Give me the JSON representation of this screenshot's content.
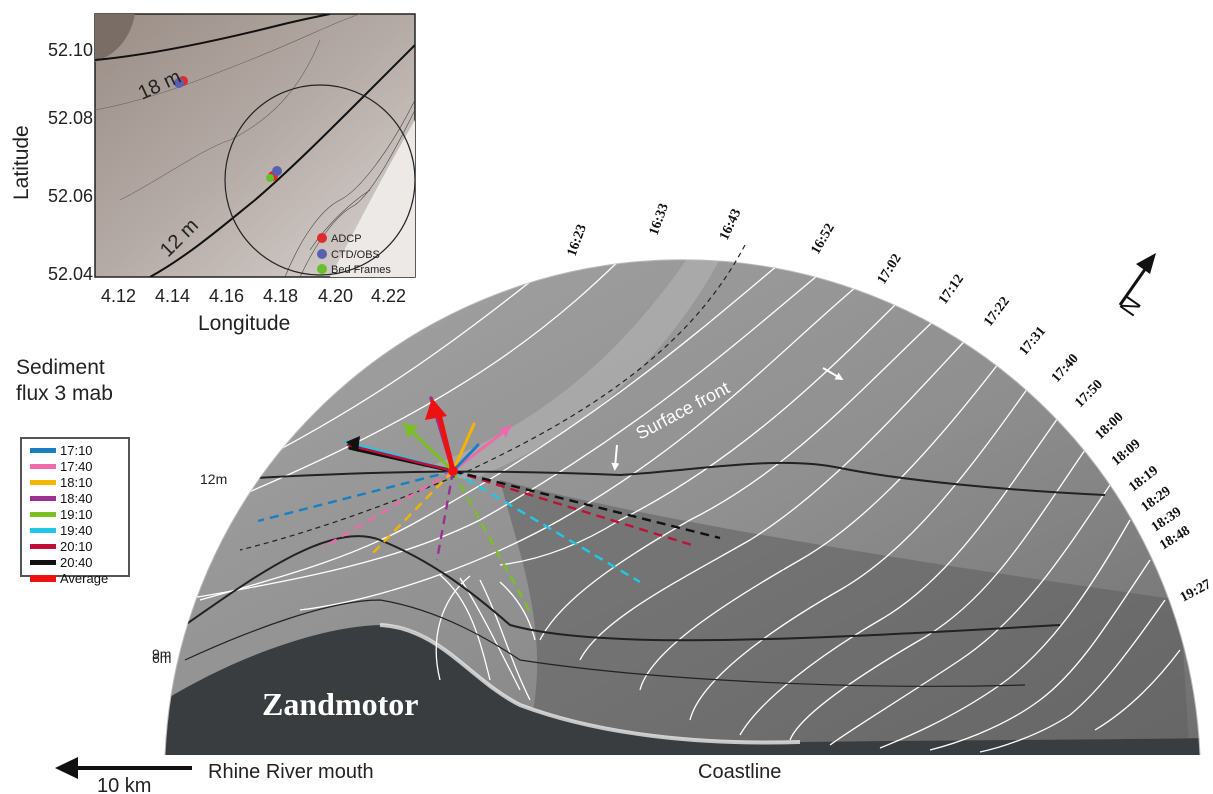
{
  "inset": {
    "ylabel": "Latitude",
    "xlabel": "Longitude",
    "yticks": [
      "52.10",
      "52.08",
      "52.06",
      "52.04"
    ],
    "xticks": [
      "4.12",
      "4.14",
      "4.16",
      "4.18",
      "4.20",
      "4.22"
    ],
    "contour_labels": [
      "18 m",
      "12 m"
    ],
    "legend": [
      {
        "label": "ADCP",
        "color": "#e02b2b"
      },
      {
        "label": "CTD/OBS",
        "color": "#5a60b0"
      },
      {
        "label": "Bed Frames",
        "color": "#66c02a"
      }
    ]
  },
  "legend": {
    "title_line1": "Sediment",
    "title_line2": "flux 3 mab",
    "items": [
      {
        "label": "17:10",
        "color": "#1a7fc1"
      },
      {
        "label": "17:40",
        "color": "#ef6aa8"
      },
      {
        "label": "18:10",
        "color": "#f4b400"
      },
      {
        "label": "18:40",
        "color": "#9c3090"
      },
      {
        "label": "19:10",
        "color": "#7ac020"
      },
      {
        "label": "19:40",
        "color": "#1ec8e6"
      },
      {
        "label": "20:10",
        "color": "#c0103a"
      },
      {
        "label": "20:40",
        "color": "#111111"
      },
      {
        "label": "Average",
        "color": "#ee1111"
      }
    ]
  },
  "time_labels": [
    "16:23",
    "16:33",
    "16:43",
    "16:52",
    "17:02",
    "17:12",
    "17:22",
    "17:31",
    "17:40",
    "17:50",
    "18:00",
    "18:09",
    "18:19",
    "18:29",
    "18:39",
    "18:48",
    "19:27"
  ],
  "depth_labels": [
    "12m",
    "9m",
    "6m"
  ],
  "annotations": {
    "surface_front": "Surface front",
    "zandmotor": "Zandmotor",
    "rhine": "Rhine River mouth",
    "scale": "10 km",
    "coastline": "Coastline",
    "north": "N"
  }
}
